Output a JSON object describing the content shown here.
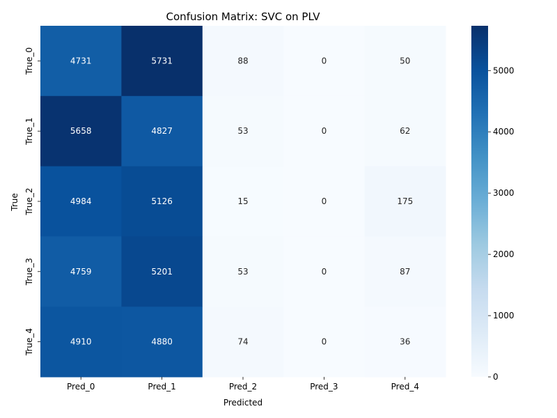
{
  "chart_data": {
    "type": "heatmap",
    "title": "Confusion Matrix: SVC on PLV",
    "xlabel": "Predicted",
    "ylabel": "True",
    "x_categories": [
      "Pred_0",
      "Pred_1",
      "Pred_2",
      "Pred_3",
      "Pred_4"
    ],
    "y_categories": [
      "True_0",
      "True_1",
      "True_2",
      "True_3",
      "True_4"
    ],
    "values": [
      [
        4731,
        5731,
        88,
        0,
        50
      ],
      [
        5658,
        4827,
        53,
        0,
        62
      ],
      [
        4984,
        5126,
        15,
        0,
        175
      ],
      [
        4759,
        5201,
        53,
        0,
        87
      ],
      [
        4910,
        4880,
        74,
        0,
        36
      ]
    ],
    "colormap": "Blues",
    "color_range": [
      0,
      5731
    ],
    "colorbar_ticks": [
      0,
      1000,
      2000,
      3000,
      4000,
      5000
    ]
  }
}
